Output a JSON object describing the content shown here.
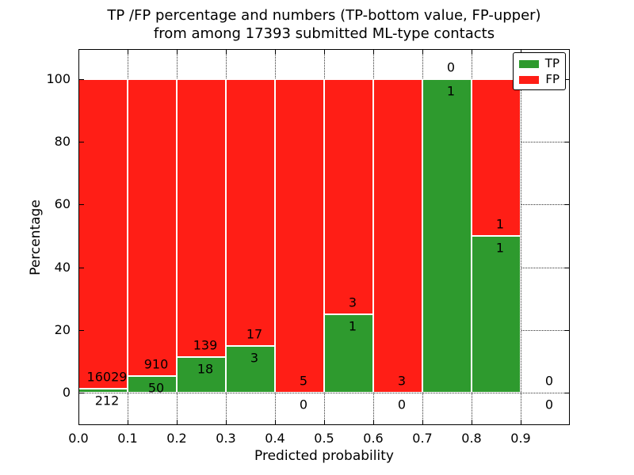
{
  "chart_data": {
    "type": "bar",
    "stacked": true,
    "normalized_to_percent": true,
    "title_line1": "TP /FP percentage and numbers (TP-bottom value, FP-upper)",
    "title_line2": "from among 17393 submitted ML-type contacts",
    "xlabel": "Predicted probability",
    "ylabel": "Percentage",
    "categories": [
      "0.0-0.1",
      "0.1-0.2",
      "0.2-0.3",
      "0.3-0.4",
      "0.4-0.5",
      "0.5-0.6",
      "0.6-0.7",
      "0.7-0.8",
      "0.8-0.9",
      "0.9-1.0"
    ],
    "series": [
      {
        "name": "TP",
        "values": [
          212,
          50,
          18,
          3,
          0,
          1,
          0,
          1,
          1,
          0
        ]
      },
      {
        "name": "FP",
        "values": [
          16029,
          910,
          139,
          17,
          5,
          3,
          3,
          0,
          1,
          0
        ]
      }
    ],
    "x_tick_labels": [
      "0.0",
      "0.1",
      "0.2",
      "0.3",
      "0.4",
      "0.5",
      "0.6",
      "0.7",
      "0.8",
      "0.9"
    ],
    "y_tick_labels": [
      "0",
      "20",
      "40",
      "60",
      "80",
      "100"
    ],
    "y_tick_values": [
      0,
      20,
      40,
      60,
      80,
      100
    ],
    "x_tick_values": [
      0.0,
      0.1,
      0.2,
      0.3,
      0.4,
      0.5,
      0.6,
      0.7,
      0.8,
      0.9
    ],
    "xlim": [
      0.0,
      1.0
    ],
    "ylim": [
      -10.35,
      109.6
    ],
    "grid": "dotted",
    "legend_position": "upper right",
    "legend": [
      {
        "label": "TP",
        "color": "#2E9A2E"
      },
      {
        "label": "FP",
        "color": "#FF1E16"
      }
    ]
  },
  "colors": {
    "tp": "#2E9A2E",
    "fp": "#FF1E16",
    "background": "#ffffff",
    "axis": "#000000",
    "grid": "#333333",
    "bar_edge": "#ffffff"
  }
}
